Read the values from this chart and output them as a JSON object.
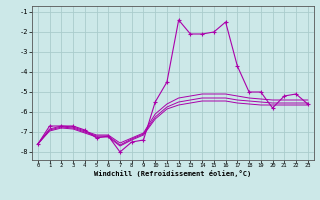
{
  "xlabel": "Windchill (Refroidissement éolien,°C)",
  "background_color": "#cce8e8",
  "grid_color": "#aacccc",
  "line_color": "#aa00aa",
  "hours": [
    0,
    1,
    2,
    3,
    4,
    5,
    6,
    7,
    8,
    9,
    10,
    11,
    12,
    13,
    14,
    15,
    16,
    17,
    18,
    19,
    20,
    21,
    22,
    23
  ],
  "windchill": [
    -7.6,
    -6.7,
    -6.7,
    -6.7,
    -6.9,
    -7.3,
    -7.2,
    -8.0,
    -7.5,
    -7.4,
    -5.5,
    -4.5,
    -1.4,
    -2.1,
    -2.1,
    -2.0,
    -1.5,
    -3.7,
    -5.0,
    -5.0,
    -5.8,
    -5.2,
    -5.1,
    -5.6
  ],
  "line2": [
    -7.6,
    -6.85,
    -6.7,
    -6.75,
    -6.95,
    -7.15,
    -7.15,
    -7.55,
    -7.3,
    -7.05,
    -6.1,
    -5.6,
    -5.3,
    -5.2,
    -5.1,
    -5.1,
    -5.1,
    -5.2,
    -5.3,
    -5.35,
    -5.4,
    -5.4,
    -5.4,
    -5.4
  ],
  "line3": [
    -7.6,
    -6.9,
    -6.75,
    -6.8,
    -7.0,
    -7.2,
    -7.2,
    -7.65,
    -7.35,
    -7.1,
    -6.25,
    -5.75,
    -5.5,
    -5.4,
    -5.3,
    -5.3,
    -5.3,
    -5.4,
    -5.45,
    -5.5,
    -5.55,
    -5.55,
    -5.55,
    -5.55
  ],
  "line4": [
    -7.6,
    -6.95,
    -6.8,
    -6.85,
    -7.05,
    -7.25,
    -7.25,
    -7.7,
    -7.4,
    -7.15,
    -6.35,
    -5.85,
    -5.65,
    -5.55,
    -5.45,
    -5.45,
    -5.45,
    -5.55,
    -5.6,
    -5.65,
    -5.65,
    -5.65,
    -5.65,
    -5.65
  ],
  "ylim": [
    -8.4,
    -0.7
  ],
  "yticks": [
    -8,
    -7,
    -6,
    -5,
    -4,
    -3,
    -2,
    -1
  ],
  "xlim": [
    -0.5,
    23.5
  ]
}
